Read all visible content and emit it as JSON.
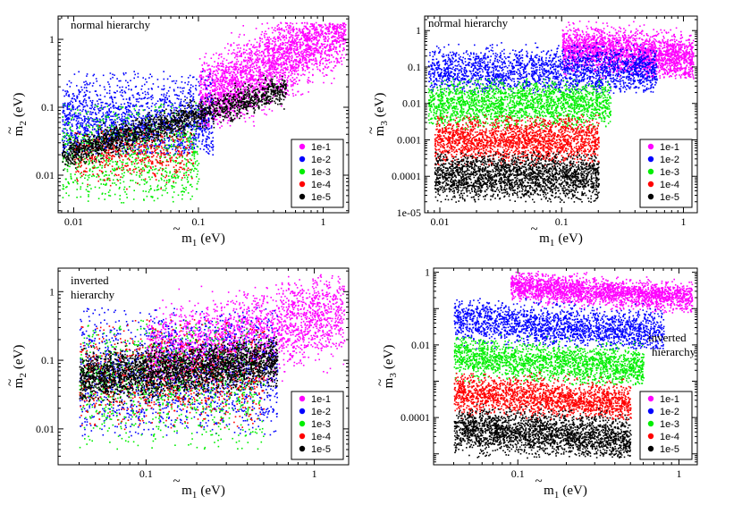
{
  "legend_labels": [
    "1e-1",
    "1e-2",
    "1e-3",
    "1e-4",
    "1e-5"
  ],
  "series_colors": {
    "1e-1": "#ff00ff",
    "1e-2": "#0000ff",
    "1e-3": "#00ee00",
    "1e-4": "#ff0000",
    "1e-5": "#000000"
  },
  "chart_data": [
    {
      "type": "scatter",
      "id": "tl",
      "annotation": [
        "normal  hierarchy"
      ],
      "xlabel": {
        "base": "m",
        "sub": "1",
        "unit": "(eV)"
      },
      "ylabel": {
        "base": "m",
        "sub": "2",
        "unit": "(eV)"
      },
      "xscale": "log",
      "yscale": "log",
      "xlim": [
        0.0075,
        1.6
      ],
      "ylim": [
        0.0028,
        2.2
      ],
      "xticks": [
        {
          "v": 0.01,
          "label": "0.01"
        },
        {
          "v": 0.1,
          "label": "0.1"
        },
        {
          "v": 1,
          "label": "1"
        }
      ],
      "yticks": [
        {
          "v": 0.01,
          "label": "0.01"
        },
        {
          "v": 0.1,
          "label": "0.1"
        },
        {
          "v": 1,
          "label": "1"
        }
      ],
      "legend_position": "bottom-right",
      "series": [
        {
          "name": "1e-1",
          "n": 2600,
          "clusters": [
            {
              "x": [
                0.1,
                1.5
              ],
              "y": [
                0.05,
                1.8
              ],
              "band": 0.55,
              "slope": 1.0,
              "ox": 0.1,
              "oy": 0.12
            }
          ]
        },
        {
          "name": "1e-2",
          "n": 1800,
          "clusters": [
            {
              "x": [
                0.008,
                0.13
              ],
              "y": [
                0.02,
                0.35
              ],
              "band": 0.8,
              "slope": 0.0,
              "ox": 0.03,
              "oy": 0.06
            }
          ]
        },
        {
          "name": "1e-3",
          "n": 900,
          "clusters": [
            {
              "x": [
                0.008,
                0.1
              ],
              "y": [
                0.004,
                0.12
              ],
              "band": 0.9,
              "slope": 0.0,
              "ox": 0.035,
              "oy": 0.02
            }
          ]
        },
        {
          "name": "1e-4",
          "n": 500,
          "clusters": [
            {
              "x": [
                0.01,
                0.09
              ],
              "y": [
                0.005,
                0.06
              ],
              "band": 0.6,
              "slope": 0.0,
              "ox": 0.04,
              "oy": 0.02
            }
          ]
        },
        {
          "name": "1e-5",
          "n": 1800,
          "clusters": [
            {
              "x": [
                0.008,
                0.5
              ],
              "y": [
                0.012,
                0.3
              ],
              "band": 0.22,
              "slope": 0.55,
              "ox": 0.05,
              "oy": 0.055
            }
          ]
        }
      ]
    },
    {
      "type": "scatter",
      "id": "tr",
      "annotation": [
        "normal  hierarchy"
      ],
      "xlabel": {
        "base": "m",
        "sub": "1",
        "unit": "(eV)"
      },
      "ylabel": {
        "base": "m",
        "sub": "3",
        "unit": "(eV)"
      },
      "xscale": "log",
      "yscale": "log",
      "xlim": [
        0.0075,
        1.3
      ],
      "ylim": [
        1e-05,
        2.5
      ],
      "xticks": [
        {
          "v": 0.01,
          "label": "0.01"
        },
        {
          "v": 0.1,
          "label": "0.1"
        },
        {
          "v": 1,
          "label": "1"
        }
      ],
      "yticks": [
        {
          "v": 1e-05,
          "label": "1e-05"
        },
        {
          "v": 0.0001,
          "label": "0.0001"
        },
        {
          "v": 0.001,
          "label": "0.001"
        },
        {
          "v": 0.01,
          "label": "0.01"
        },
        {
          "v": 0.1,
          "label": "0.1"
        },
        {
          "v": 1,
          "label": "1"
        }
      ],
      "legend_position": "bottom-right",
      "series": [
        {
          "name": "1e-1",
          "n": 2400,
          "clusters": [
            {
              "x": [
                0.1,
                1.2
              ],
              "y": [
                0.05,
                2.0
              ],
              "band": 0.6,
              "slope": -0.3,
              "ox": 0.3,
              "oy": 0.25
            }
          ]
        },
        {
          "name": "1e-2",
          "n": 2200,
          "clusters": [
            {
              "x": [
                0.008,
                0.6
              ],
              "y": [
                0.02,
                0.5
              ],
              "band": 0.7,
              "slope": 0.0,
              "ox": 0.05,
              "oy": 0.08
            }
          ]
        },
        {
          "name": "1e-3",
          "n": 2000,
          "clusters": [
            {
              "x": [
                0.008,
                0.25
              ],
              "y": [
                0.002,
                0.05
              ],
              "band": 0.7,
              "slope": 0.0,
              "ox": 0.04,
              "oy": 0.01
            }
          ]
        },
        {
          "name": "1e-4",
          "n": 2000,
          "clusters": [
            {
              "x": [
                0.009,
                0.2
              ],
              "y": [
                0.0002,
                0.005
              ],
              "band": 0.7,
              "slope": 0.0,
              "ox": 0.04,
              "oy": 0.001
            }
          ]
        },
        {
          "name": "1e-5",
          "n": 2200,
          "clusters": [
            {
              "x": [
                0.009,
                0.2
              ],
              "y": [
                2e-05,
                0.0005
              ],
              "band": 0.7,
              "slope": 0.0,
              "ox": 0.04,
              "oy": 0.0001
            }
          ]
        }
      ]
    },
    {
      "type": "scatter",
      "id": "bl",
      "annotation": [
        "inverted",
        "hierarchy"
      ],
      "xlabel": {
        "base": "m",
        "sub": "1",
        "unit": "(eV)"
      },
      "ylabel": {
        "base": "m",
        "sub": "2",
        "unit": "(eV)"
      },
      "xscale": "log",
      "yscale": "log",
      "xlim": [
        0.03,
        1.6
      ],
      "ylim": [
        0.003,
        2.2
      ],
      "xticks": [
        {
          "v": 0.1,
          "label": "0.1"
        },
        {
          "v": 1,
          "label": "1"
        }
      ],
      "yticks": [
        {
          "v": 0.01,
          "label": "0.01"
        },
        {
          "v": 0.1,
          "label": "0.1"
        },
        {
          "v": 1,
          "label": "1"
        }
      ],
      "legend_position": "bottom-right",
      "series": [
        {
          "name": "1e-1",
          "n": 2400,
          "clusters": [
            {
              "x": [
                0.1,
                1.5
              ],
              "y": [
                0.05,
                1.8
              ],
              "band": 0.6,
              "slope": 0.6,
              "ox": 0.3,
              "oy": 0.2
            }
          ]
        },
        {
          "name": "1e-2",
          "n": 1600,
          "clusters": [
            {
              "x": [
                0.04,
                0.6
              ],
              "y": [
                0.008,
                0.6
              ],
              "band": 0.8,
              "slope": 0.0,
              "ox": 0.1,
              "oy": 0.06
            }
          ]
        },
        {
          "name": "1e-3",
          "n": 1000,
          "clusters": [
            {
              "x": [
                0.04,
                0.5
              ],
              "y": [
                0.005,
                0.4
              ],
              "band": 0.8,
              "slope": 0.0,
              "ox": 0.08,
              "oy": 0.05
            }
          ]
        },
        {
          "name": "1e-4",
          "n": 900,
          "clusters": [
            {
              "x": [
                0.04,
                0.5
              ],
              "y": [
                0.01,
                0.4
              ],
              "band": 0.7,
              "slope": 0.0,
              "ox": 0.1,
              "oy": 0.06
            }
          ]
        },
        {
          "name": "1e-5",
          "n": 2600,
          "clusters": [
            {
              "x": [
                0.04,
                0.6
              ],
              "y": [
                0.02,
                0.5
              ],
              "band": 0.35,
              "slope": 0.2,
              "ox": 0.12,
              "oy": 0.07
            }
          ]
        }
      ]
    },
    {
      "type": "scatter",
      "id": "br",
      "annotation": [
        "inverted",
        "hierarchy"
      ],
      "xlabel": {
        "base": "m",
        "sub": "1",
        "unit": "(eV)"
      },
      "ylabel": {
        "base": "m",
        "sub": "3",
        "unit": "(eV)"
      },
      "xscale": "log",
      "yscale": "log",
      "xlim": [
        0.03,
        1.3
      ],
      "ylim": [
        5e-06,
        1.3
      ],
      "xticks": [
        {
          "v": 0.1,
          "label": "0.1"
        },
        {
          "v": 1,
          "label": "1"
        }
      ],
      "yticks": [
        {
          "v": 0.0001,
          "label": "0.0001"
        },
        {
          "v": 0.01,
          "label": "0.01"
        },
        {
          "v": 1,
          "label": "1"
        }
      ],
      "legend_position": "bottom-right",
      "series": [
        {
          "name": "1e-1",
          "n": 2300,
          "clusters": [
            {
              "x": [
                0.09,
                1.2
              ],
              "y": [
                0.08,
                1.1
              ],
              "band": 0.5,
              "slope": -0.3,
              "ox": 0.3,
              "oy": 0.3
            }
          ]
        },
        {
          "name": "1e-2",
          "n": 2000,
          "clusters": [
            {
              "x": [
                0.04,
                0.8
              ],
              "y": [
                0.008,
                0.2
              ],
              "band": 0.6,
              "slope": -0.3,
              "ox": 0.1,
              "oy": 0.04
            }
          ]
        },
        {
          "name": "1e-3",
          "n": 1900,
          "clusters": [
            {
              "x": [
                0.04,
                0.6
              ],
              "y": [
                0.0008,
                0.02
              ],
              "band": 0.6,
              "slope": -0.3,
              "ox": 0.1,
              "oy": 0.004
            }
          ]
        },
        {
          "name": "1e-4",
          "n": 1900,
          "clusters": [
            {
              "x": [
                0.04,
                0.5
              ],
              "y": [
                9e-05,
                0.002
              ],
              "band": 0.6,
              "slope": -0.3,
              "ox": 0.1,
              "oy": 0.0004
            }
          ]
        },
        {
          "name": "1e-5",
          "n": 2300,
          "clusters": [
            {
              "x": [
                0.04,
                0.5
              ],
              "y": [
                8e-06,
                0.00025
              ],
              "band": 0.6,
              "slope": -0.3,
              "ox": 0.1,
              "oy": 4e-05
            }
          ]
        }
      ]
    }
  ]
}
